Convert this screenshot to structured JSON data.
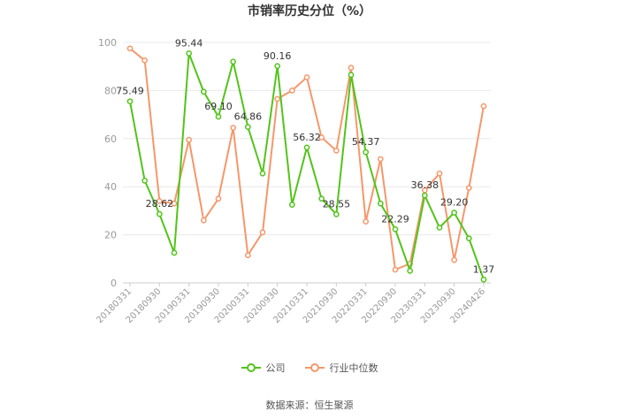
{
  "title": "市销率历史分位（%）",
  "source": "数据来源：恒生聚源",
  "colors": {
    "company": "#52c41a",
    "industry": "#f5976b",
    "grid": "#e8e8e8",
    "axis_text": "#999999",
    "label_text": "#333333"
  },
  "chart_data": {
    "type": "line",
    "title": "市销率历史分位（%）",
    "ylim": [
      0,
      100
    ],
    "yticks": [
      0,
      20,
      40,
      60,
      80,
      100
    ],
    "grid": true,
    "legend_position": "bottom",
    "x_tick_labels": [
      "20180331",
      "20180930",
      "20190331",
      "20190930",
      "20200331",
      "20200930",
      "20210331",
      "20210930",
      "20220331",
      "20220930",
      "20230331",
      "20230930",
      "20240426"
    ],
    "x_tick_every": 2,
    "series": [
      {
        "name": "公司",
        "color": "#52c41a",
        "values": [
          75.49,
          42.5,
          28.62,
          12.5,
          95.44,
          79.5,
          69.1,
          92.0,
          64.86,
          45.5,
          90.16,
          32.5,
          56.32,
          35.0,
          28.55,
          86.5,
          54.37,
          33.0,
          22.29,
          5.0,
          36.38,
          23.0,
          29.2,
          18.5,
          1.37
        ],
        "labels": [
          "75.49",
          "",
          "28.62",
          "",
          "95.44",
          "",
          "69.10",
          "",
          "64.86",
          "",
          "90.16",
          "",
          "56.32",
          "",
          "28.55",
          "",
          "54.37",
          "",
          "22.29",
          "",
          "36.38",
          "",
          "29.20",
          "",
          "1.37"
        ]
      },
      {
        "name": "行业中位数",
        "color": "#f5976b",
        "values": [
          97.5,
          92.5,
          34.0,
          33.0,
          59.5,
          26.0,
          35.0,
          64.5,
          11.5,
          21.0,
          76.5,
          80.0,
          85.5,
          60.5,
          55.0,
          89.5,
          25.5,
          51.5,
          5.5,
          8.0,
          38.5,
          45.5,
          9.5,
          39.5,
          73.5
        ]
      }
    ]
  }
}
